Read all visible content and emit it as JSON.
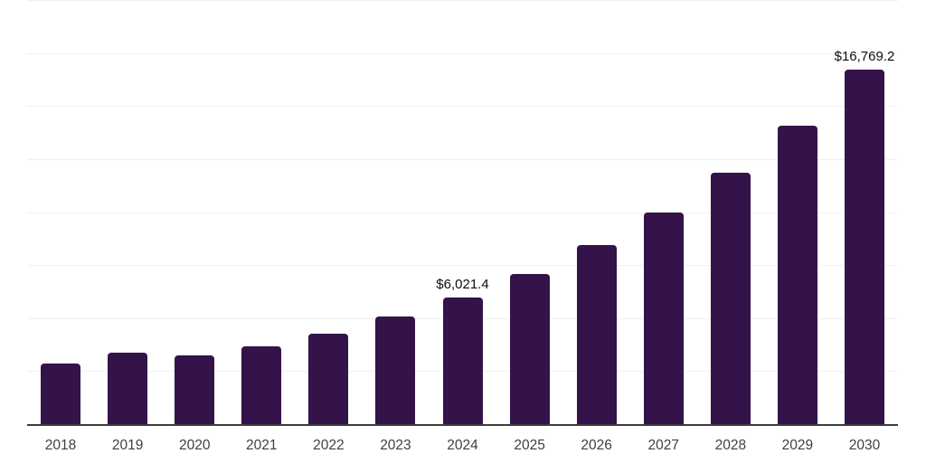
{
  "chart_data": {
    "type": "bar",
    "title": "",
    "xlabel": "",
    "ylabel": "",
    "categories": [
      "2018",
      "2019",
      "2020",
      "2021",
      "2022",
      "2023",
      "2024",
      "2025",
      "2026",
      "2027",
      "2028",
      "2029",
      "2030"
    ],
    "values": [
      2900,
      3420,
      3270,
      3710,
      4310,
      5120,
      6021.4,
      7140,
      8470,
      10040,
      11910,
      14130,
      16769.2
    ],
    "value_labels": [
      {
        "category": "2024",
        "text": "$6,021.4"
      },
      {
        "category": "2030",
        "text": "$16,769.2"
      }
    ],
    "ylim": [
      0,
      20000
    ],
    "grid_divisions": 8,
    "grid": "horizontal",
    "legend_position": "none",
    "bar_color": "#331349"
  },
  "colors": {
    "background": "#ffffff",
    "bar": "#331349",
    "gridline": "#f0f0f0",
    "axis_line": "#3c3c3c",
    "tick_label": "#3f3f3f",
    "value_label": "#0d0d0d"
  }
}
